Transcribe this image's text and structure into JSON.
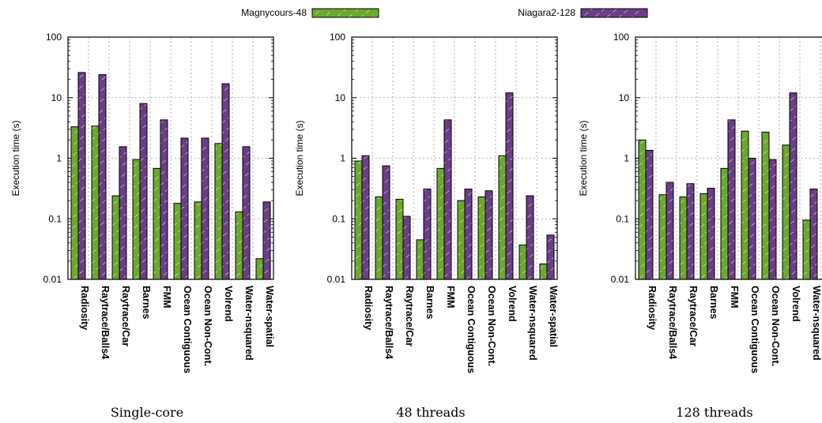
{
  "legend": {
    "series_a": "Magnycours-48",
    "series_b": "Niagara2-128"
  },
  "colors": {
    "series_a": "#6aa82e",
    "series_b": "#6b3d86",
    "grid": "#9a9a9a"
  },
  "chart_data": [
    {
      "type": "bar",
      "title": "Single-core",
      "ylabel": "Execution time (s)",
      "yscale": "log",
      "ylim": [
        0.01,
        100
      ],
      "yticks": [
        "0.01",
        "0.1",
        "1",
        "10",
        "100"
      ],
      "grid": true,
      "legend_position": "top",
      "categories": [
        "Radiosity",
        "Raytrace/Balls4",
        "Raytrace/Car",
        "Barnes",
        "FMM",
        "Ocean Contiguous",
        "Ocean Non-Cont.",
        "Volrend",
        "Water-nsquared",
        "Water-spatial"
      ],
      "series": [
        {
          "name": "Magnycours-48",
          "values": [
            3.3,
            3.4,
            0.24,
            0.95,
            0.68,
            0.18,
            0.19,
            1.75,
            0.13,
            0.022
          ]
        },
        {
          "name": "Niagara2-128",
          "values": [
            26,
            24,
            1.55,
            8,
            4.3,
            2.15,
            2.15,
            17,
            1.55,
            0.19
          ]
        }
      ]
    },
    {
      "type": "bar",
      "title": "48 threads",
      "ylabel": "Execution time (s)",
      "yscale": "log",
      "ylim": [
        0.01,
        100
      ],
      "yticks": [
        "0.01",
        "0.1",
        "1",
        "10",
        "100"
      ],
      "grid": true,
      "categories": [
        "Radiosity",
        "Raytrace/Balls4",
        "Raytrace/Car",
        "Barnes",
        "FMM",
        "Ocean Contiguous",
        "Ocean Non-Cont.",
        "Volrend",
        "Water-nsquared",
        "Water-spatial"
      ],
      "series": [
        {
          "name": "Magnycours-48",
          "values": [
            0.9,
            0.23,
            0.21,
            0.045,
            0.68,
            0.2,
            0.23,
            1.1,
            0.037,
            0.018
          ]
        },
        {
          "name": "Niagara2-128",
          "values": [
            1.1,
            0.75,
            0.11,
            0.31,
            4.3,
            0.31,
            0.29,
            12,
            0.24,
            0.054
          ]
        }
      ]
    },
    {
      "type": "bar",
      "title": "128 threads",
      "ylabel": "Execution time (s)",
      "yscale": "log",
      "ylim": [
        0.01,
        100
      ],
      "yticks": [
        "0.01",
        "0.1",
        "1",
        "10",
        "100"
      ],
      "grid": true,
      "categories": [
        "Radiosity",
        "Raytrace/Balls4",
        "Raytrace/Car",
        "Barnes",
        "FMM",
        "Ocean Contiguous",
        "Ocean Non-Cont.",
        "Volrend",
        "Water-nsquared",
        "Water-spatial"
      ],
      "series": [
        {
          "name": "Magnycours-48",
          "values": [
            2.0,
            0.25,
            0.23,
            0.26,
            0.68,
            2.8,
            2.7,
            1.65,
            0.095,
            0.055
          ]
        },
        {
          "name": "Niagara2-128",
          "values": [
            1.35,
            0.4,
            0.38,
            0.32,
            4.3,
            1.0,
            0.95,
            12,
            0.31,
            0.15
          ]
        }
      ]
    }
  ]
}
